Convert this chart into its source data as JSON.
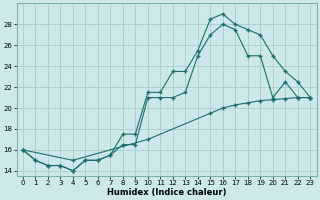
{
  "xlabel": "Humidex (Indice chaleur)",
  "bg_color": "#cce8e8",
  "grid_color": "#aacccc",
  "line_color": "#1a6e6e",
  "xlim": [
    -0.5,
    23.5
  ],
  "ylim": [
    13.5,
    30
  ],
  "xticks": [
    0,
    1,
    2,
    3,
    4,
    5,
    6,
    7,
    8,
    9,
    10,
    11,
    12,
    13,
    14,
    15,
    16,
    17,
    18,
    19,
    20,
    21,
    22,
    23
  ],
  "yticks": [
    14,
    16,
    18,
    20,
    22,
    24,
    26,
    28
  ],
  "line1_x": [
    0,
    1,
    2,
    3,
    4,
    5,
    6,
    7,
    8,
    9,
    10,
    11,
    12,
    13,
    14,
    15,
    16,
    17,
    18,
    19,
    20,
    21,
    22,
    23
  ],
  "line1_y": [
    16,
    15,
    14.5,
    14.5,
    14,
    15,
    15,
    15.5,
    17.5,
    17.5,
    21.5,
    21.5,
    23.5,
    23.5,
    25.5,
    28.5,
    29,
    28,
    27.5,
    27,
    25,
    23.5,
    22.5,
    21
  ],
  "line2_x": [
    0,
    1,
    2,
    3,
    4,
    5,
    6,
    7,
    8,
    9,
    10,
    11,
    12,
    13,
    14,
    15,
    16,
    17,
    18,
    19,
    20,
    21,
    22,
    23
  ],
  "line2_y": [
    16,
    15,
    14.5,
    14.5,
    14,
    15,
    15,
    15.5,
    16.5,
    16.5,
    21,
    21,
    21,
    21.5,
    25,
    27,
    28,
    27.5,
    25,
    25,
    21,
    22.5,
    21,
    21
  ],
  "line3_x": [
    0,
    4,
    10,
    15,
    16,
    17,
    18,
    19,
    20,
    21,
    22,
    23
  ],
  "line3_y": [
    16,
    15,
    17,
    19.5,
    20,
    20.3,
    20.5,
    20.7,
    20.8,
    20.9,
    21,
    21
  ]
}
